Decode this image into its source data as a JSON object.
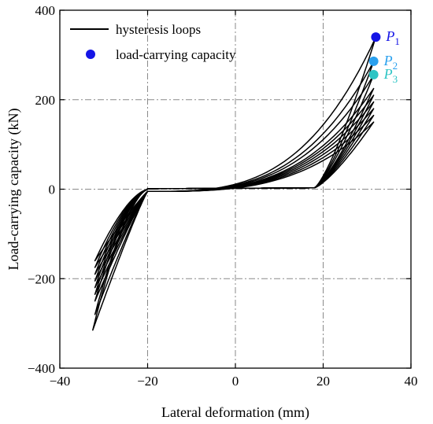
{
  "chart_data": {
    "type": "line",
    "title": "",
    "xlabel": "Lateral deformation (mm)",
    "ylabel": "Load-carrying capacity (kN)",
    "xlim": [
      -40,
      40
    ],
    "ylim": [
      -400,
      400
    ],
    "xticks": [
      "-40",
      "-20",
      "0",
      "20",
      "40"
    ],
    "yticks": [
      "-400",
      "-200",
      "0",
      "200",
      "400"
    ],
    "grid": "dash-dot, on at 0 and ±20 on both axes",
    "legend": {
      "position": "top-left",
      "entries": [
        {
          "label": "hysteresis loops",
          "marker": "line",
          "color": "#000000"
        },
        {
          "label": "load-carrying capacity",
          "marker": "circle",
          "color": "#1515e6"
        }
      ]
    },
    "series": [
      {
        "name": "hysteresis loops",
        "color": "#000000",
        "loops": [
          {
            "amp_pos": 31.5,
            "peak_pos": 150,
            "amp_neg": -32.0,
            "peak_neg": -160
          },
          {
            "amp_pos": 31.5,
            "peak_pos": 165,
            "amp_neg": -32.0,
            "peak_neg": -175
          },
          {
            "amp_pos": 31.5,
            "peak_pos": 180,
            "amp_neg": -32.0,
            "peak_neg": -190
          },
          {
            "amp_pos": 31.5,
            "peak_pos": 195,
            "amp_neg": -32.0,
            "peak_neg": -205
          },
          {
            "amp_pos": 31.5,
            "peak_pos": 210,
            "amp_neg": -32.0,
            "peak_neg": -220
          },
          {
            "amp_pos": 31.5,
            "peak_pos": 225,
            "amp_neg": -32.0,
            "peak_neg": -235
          },
          {
            "amp_pos": 31.5,
            "peak_pos": 255,
            "amp_neg": -32.0,
            "peak_neg": -250
          },
          {
            "amp_pos": 31.5,
            "peak_pos": 285,
            "amp_neg": -32.0,
            "peak_neg": -280
          },
          {
            "amp_pos": 32.0,
            "peak_pos": 340,
            "amp_neg": -32.5,
            "peak_neg": -315
          }
        ]
      }
    ],
    "points": [
      {
        "label": "P",
        "sub": "1",
        "x": 32.0,
        "y": 340,
        "color": "#1515e6"
      },
      {
        "label": "P",
        "sub": "2",
        "x": 31.5,
        "y": 286,
        "color": "#2aa0ee"
      },
      {
        "label": "P",
        "sub": "3",
        "x": 31.5,
        "y": 256,
        "color": "#2cc4c4"
      }
    ]
  }
}
